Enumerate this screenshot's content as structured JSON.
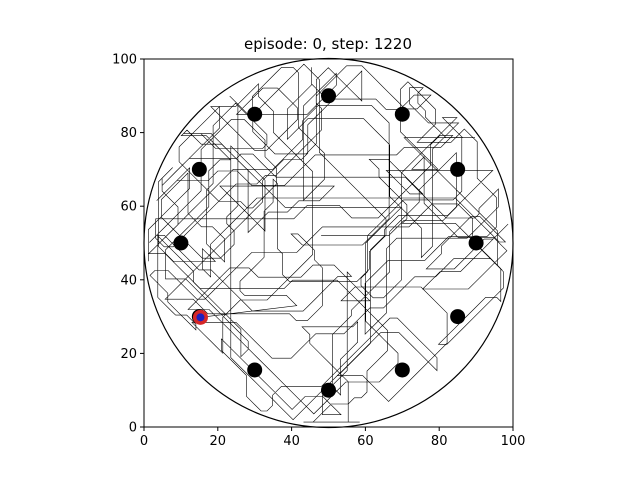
{
  "chart_data": {
    "type": "scatter",
    "title": "episode: 0, step: 1220",
    "xlabel": "",
    "ylabel": "",
    "xlim": [
      0,
      100
    ],
    "ylim": [
      0,
      100
    ],
    "xticks": [
      0,
      20,
      40,
      60,
      80,
      100
    ],
    "yticks": [
      0,
      20,
      40,
      60,
      80,
      100
    ],
    "grid": false,
    "arena": {
      "center": [
        50,
        50
      ],
      "radius": 50,
      "color": "#000000"
    },
    "obstacles": {
      "color": "#000000",
      "points": [
        [
          50,
          90
        ],
        [
          70,
          85
        ],
        [
          85,
          70
        ],
        [
          90,
          50
        ],
        [
          85,
          30
        ],
        [
          70,
          15.5
        ],
        [
          50,
          10
        ],
        [
          30,
          15.5
        ],
        [
          15,
          30
        ],
        [
          10,
          50
        ],
        [
          15,
          70
        ],
        [
          30,
          85
        ]
      ]
    },
    "agent": {
      "position": [
        15.3,
        29.8
      ],
      "fill": "#1f1fbf",
      "ring": "#d62728"
    },
    "trail": {
      "color": "#000000",
      "segments": 1220
    }
  }
}
